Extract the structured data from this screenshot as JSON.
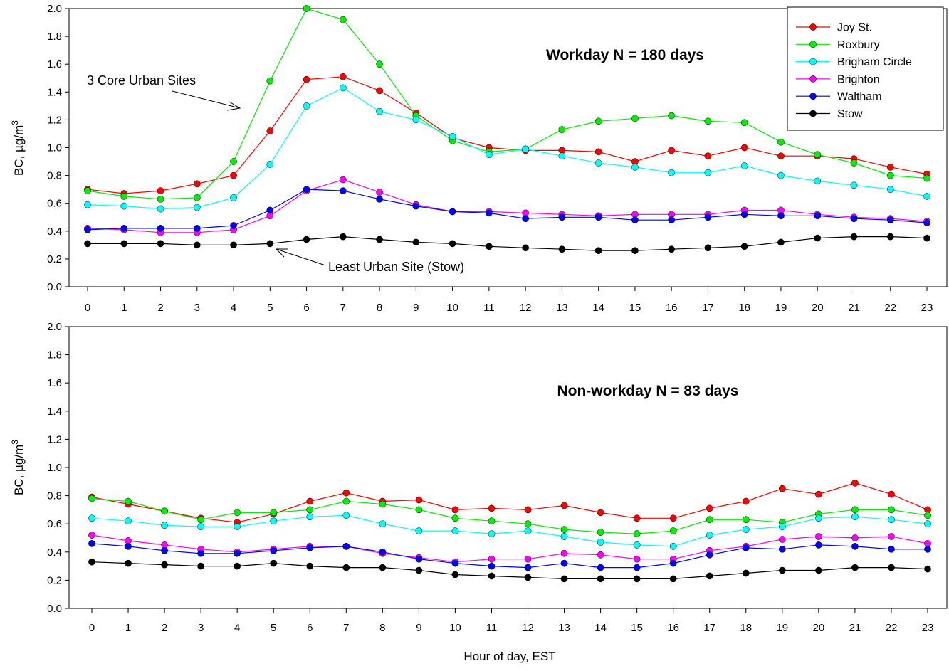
{
  "figure": {
    "xlabel": "Hour of day, EST",
    "legend": {
      "placement": "top-right",
      "entries": [
        "Joy St.",
        "Roxbury",
        "Brigham Circle",
        "Brighton",
        "Waltham",
        "Stow"
      ]
    },
    "colors": {
      "Joy St.": "#ff0000",
      "Roxbury": "#00ee00",
      "Brigham Circle": "#00ffff",
      "Brighton": "#ff00ff",
      "Waltham": "#0000ff",
      "Stow": "#000000"
    }
  },
  "annotations": {
    "core": "3 Core Urban Sites",
    "least": "Least Urban Site (Stow)"
  },
  "chart_data": [
    {
      "type": "line",
      "title": "Workday  N = 180 days",
      "xlabel": "",
      "ylabel": "BC, µg/m³",
      "ylim": [
        0,
        2.0
      ],
      "x": [
        0,
        1,
        2,
        3,
        4,
        5,
        6,
        7,
        8,
        9,
        10,
        11,
        12,
        13,
        14,
        15,
        16,
        17,
        18,
        19,
        20,
        21,
        22,
        23
      ],
      "yticks": [
        "0.0",
        "0.2",
        "0.4",
        "0.6",
        "0.8",
        "1.0",
        "1.2",
        "1.4",
        "1.6",
        "1.8",
        "2.0"
      ],
      "grid": false,
      "series": [
        {
          "name": "Joy St.",
          "values": [
            0.7,
            0.67,
            0.69,
            0.74,
            0.8,
            1.12,
            1.49,
            1.51,
            1.41,
            1.25,
            1.07,
            1.0,
            0.98,
            0.98,
            0.97,
            0.9,
            0.98,
            0.94,
            1.0,
            0.94,
            0.94,
            0.92,
            0.86,
            0.81
          ]
        },
        {
          "name": "Roxbury",
          "values": [
            0.69,
            0.65,
            0.63,
            0.64,
            0.9,
            1.48,
            2.0,
            1.92,
            1.6,
            1.23,
            1.05,
            0.97,
            0.99,
            1.13,
            1.19,
            1.21,
            1.23,
            1.19,
            1.18,
            1.04,
            0.95,
            0.89,
            0.8,
            0.78
          ]
        },
        {
          "name": "Brigham Circle",
          "values": [
            0.59,
            0.58,
            0.56,
            0.57,
            0.64,
            0.88,
            1.3,
            1.43,
            1.26,
            1.2,
            1.08,
            0.95,
            0.99,
            0.94,
            0.89,
            0.86,
            0.82,
            0.82,
            0.87,
            0.8,
            0.76,
            0.73,
            0.7,
            0.65
          ]
        },
        {
          "name": "Brighton",
          "values": [
            0.42,
            0.41,
            0.39,
            0.39,
            0.41,
            0.51,
            0.69,
            0.77,
            0.68,
            0.59,
            0.54,
            0.54,
            0.53,
            0.52,
            0.51,
            0.52,
            0.52,
            0.52,
            0.55,
            0.55,
            0.52,
            0.5,
            0.49,
            0.47
          ]
        },
        {
          "name": "Waltham",
          "values": [
            0.41,
            0.42,
            0.42,
            0.42,
            0.44,
            0.55,
            0.7,
            0.69,
            0.63,
            0.58,
            0.54,
            0.53,
            0.49,
            0.5,
            0.5,
            0.48,
            0.48,
            0.5,
            0.52,
            0.51,
            0.51,
            0.49,
            0.48,
            0.46
          ]
        },
        {
          "name": "Stow",
          "values": [
            0.31,
            0.31,
            0.31,
            0.3,
            0.3,
            0.31,
            0.34,
            0.36,
            0.34,
            0.32,
            0.31,
            0.29,
            0.28,
            0.27,
            0.26,
            0.26,
            0.27,
            0.28,
            0.29,
            0.32,
            0.35,
            0.36,
            0.36,
            0.35
          ]
        }
      ]
    },
    {
      "type": "line",
      "title": "Non-workday  N = 83 days",
      "xlabel": "Hour of day, EST",
      "ylabel": "BC, µg/m³",
      "ylim": [
        0,
        2.0
      ],
      "x": [
        0,
        1,
        2,
        3,
        4,
        5,
        6,
        7,
        8,
        9,
        10,
        11,
        12,
        13,
        14,
        15,
        16,
        17,
        18,
        19,
        20,
        21,
        22,
        23
      ],
      "yticks": [
        "0.0",
        "0.2",
        "0.4",
        "0.6",
        "0.8",
        "1.0",
        "1.2",
        "1.4",
        "1.6",
        "1.8",
        "2.0"
      ],
      "grid": false,
      "series": [
        {
          "name": "Joy St.",
          "values": [
            0.79,
            0.74,
            0.69,
            0.64,
            0.61,
            0.67,
            0.76,
            0.82,
            0.76,
            0.77,
            0.7,
            0.71,
            0.7,
            0.73,
            0.68,
            0.64,
            0.64,
            0.71,
            0.76,
            0.85,
            0.81,
            0.89,
            0.81,
            0.7
          ]
        },
        {
          "name": "Roxbury",
          "values": [
            0.78,
            0.76,
            0.69,
            0.63,
            0.68,
            0.68,
            0.7,
            0.76,
            0.74,
            0.7,
            0.64,
            0.62,
            0.6,
            0.56,
            0.54,
            0.53,
            0.55,
            0.63,
            0.63,
            0.61,
            0.67,
            0.7,
            0.7,
            0.66
          ]
        },
        {
          "name": "Brigham Circle",
          "values": [
            0.64,
            0.62,
            0.59,
            0.58,
            0.58,
            0.62,
            0.65,
            0.66,
            0.6,
            0.55,
            0.55,
            0.53,
            0.55,
            0.51,
            0.47,
            0.45,
            0.44,
            0.52,
            0.56,
            0.58,
            0.64,
            0.65,
            0.63,
            0.6
          ]
        },
        {
          "name": "Brighton",
          "values": [
            0.52,
            0.48,
            0.45,
            0.42,
            0.4,
            0.42,
            0.44,
            0.44,
            0.39,
            0.36,
            0.33,
            0.35,
            0.35,
            0.39,
            0.38,
            0.35,
            0.35,
            0.41,
            0.44,
            0.49,
            0.51,
            0.5,
            0.51,
            0.46
          ]
        },
        {
          "name": "Waltham",
          "values": [
            0.46,
            0.44,
            0.41,
            0.39,
            0.39,
            0.41,
            0.43,
            0.44,
            0.4,
            0.35,
            0.32,
            0.3,
            0.29,
            0.32,
            0.29,
            0.29,
            0.32,
            0.38,
            0.43,
            0.42,
            0.45,
            0.44,
            0.42,
            0.42
          ]
        },
        {
          "name": "Stow",
          "values": [
            0.33,
            0.32,
            0.31,
            0.3,
            0.3,
            0.32,
            0.3,
            0.29,
            0.29,
            0.27,
            0.24,
            0.23,
            0.22,
            0.21,
            0.21,
            0.21,
            0.21,
            0.23,
            0.25,
            0.27,
            0.27,
            0.29,
            0.29,
            0.28
          ]
        }
      ]
    }
  ]
}
